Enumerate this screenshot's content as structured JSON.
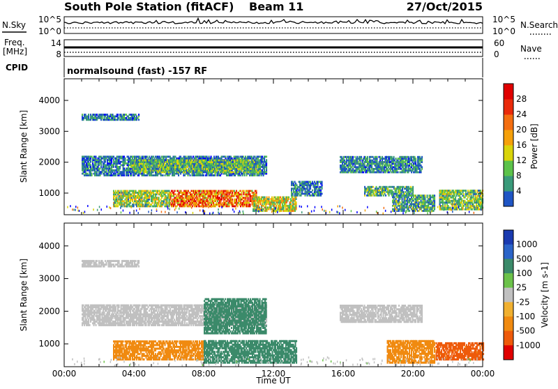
{
  "header": {
    "station": "South Pole Station (fitACF)",
    "beam": "Beam 11",
    "date": "27/Oct/2015"
  },
  "aux": {
    "nsky_label": "N.Sky",
    "nsearch_label": "N.Search",
    "noise_ticks_left": [
      "10^5",
      "10^0"
    ],
    "noise_ticks_right": [
      "10^5",
      "10^0"
    ],
    "freq_label_1": "Freq.",
    "freq_label_2": "[MHz]",
    "freq_ticks": [
      "14",
      "8"
    ],
    "nave_label": "Nave",
    "nave_ticks": [
      "60",
      "0"
    ],
    "cpid_label": "CPID",
    "cpid_text": "normalsound (fast) -157 RF"
  },
  "colors": {
    "power_scale": [
      "#0000ff",
      "#1f55c4",
      "#3a9a7a",
      "#5cc24a",
      "#d9d40a",
      "#f5a00a",
      "#f46e10",
      "#ea2a0a",
      "#e00000"
    ],
    "velocity_scale": [
      "#1a3ab0",
      "#2b64c8",
      "#3b8a6a",
      "#6cc24a",
      "#c0c0c0",
      "#f0b030",
      "#f08a10",
      "#ee5a0a",
      "#e00000"
    ]
  },
  "chart_data": [
    {
      "type": "heatmap",
      "title": "Power",
      "xlabel": "",
      "ylabel": "Slant Range [km]",
      "xlim": [
        0,
        24
      ],
      "ylim": [
        300,
        4700
      ],
      "x_ticks": [],
      "y_ticks": [
        "1000",
        "2000",
        "3000",
        "4000"
      ],
      "colorbar": {
        "label": "Power [dB]",
        "ticks": [
          "4",
          "8",
          "12",
          "16",
          "20",
          "24",
          "28"
        ],
        "range": [
          0,
          32
        ]
      },
      "regions": [
        {
          "t0": 1.0,
          "t1": 11.6,
          "r0": 1550,
          "r1": 2200,
          "value": 8
        },
        {
          "t0": 3.8,
          "t1": 11.2,
          "r0": 1650,
          "r1": 2050,
          "value": 13
        },
        {
          "t0": 6.0,
          "t1": 11.0,
          "r0": 550,
          "r1": 1100,
          "value": 26
        },
        {
          "t0": 2.8,
          "t1": 6.0,
          "r0": 550,
          "r1": 1100,
          "value": 15
        },
        {
          "t0": 10.8,
          "t1": 13.3,
          "r0": 400,
          "r1": 850,
          "value": 18
        },
        {
          "t0": 13.0,
          "t1": 14.8,
          "r0": 900,
          "r1": 1350,
          "value": 8
        },
        {
          "t0": 15.8,
          "t1": 20.5,
          "r0": 1650,
          "r1": 2150,
          "value": 9
        },
        {
          "t0": 17.2,
          "t1": 20.0,
          "r0": 900,
          "r1": 1200,
          "value": 12
        },
        {
          "t0": 18.8,
          "t1": 21.2,
          "r0": 400,
          "r1": 950,
          "value": 11
        },
        {
          "t0": 21.5,
          "t1": 24.0,
          "r0": 450,
          "r1": 1100,
          "value": 14
        },
        {
          "t0": 1.0,
          "t1": 4.3,
          "r0": 3350,
          "r1": 3550,
          "value": 8
        }
      ]
    },
    {
      "type": "heatmap",
      "title": "Velocity",
      "xlabel": "Time UT",
      "ylabel": "Slant Range [km]",
      "xlim": [
        0,
        24
      ],
      "ylim": [
        300,
        4700
      ],
      "x_ticks": [
        "00:00",
        "04:00",
        "08:00",
        "12:00",
        "16:00",
        "20:00",
        "00:00"
      ],
      "y_ticks": [
        "1000",
        "2000",
        "3000",
        "4000"
      ],
      "colorbar": {
        "label": "Velocity [m s-1]",
        "ticks": [
          "1000",
          "500",
          "100",
          "25",
          "-25",
          "-100",
          "-500",
          "-1000"
        ]
      },
      "regions": [
        {
          "t0": 1.0,
          "t1": 11.6,
          "r0": 1550,
          "r1": 2200,
          "value": 0
        },
        {
          "t0": 8.0,
          "t1": 11.6,
          "r0": 1300,
          "r1": 2400,
          "value": 300
        },
        {
          "t0": 2.8,
          "t1": 8.0,
          "r0": 500,
          "r1": 1100,
          "value": -300
        },
        {
          "t0": 8.0,
          "t1": 13.3,
          "r0": 400,
          "r1": 1100,
          "value": 200
        },
        {
          "t0": 15.8,
          "t1": 20.5,
          "r0": 1650,
          "r1": 2150,
          "value": 0
        },
        {
          "t0": 18.5,
          "t1": 21.2,
          "r0": 400,
          "r1": 1100,
          "value": -300
        },
        {
          "t0": 21.3,
          "t1": 24.0,
          "r0": 500,
          "r1": 1000,
          "value": -700
        },
        {
          "t0": 1.0,
          "t1": 4.3,
          "r0": 3350,
          "r1": 3550,
          "value": 0
        }
      ]
    }
  ]
}
